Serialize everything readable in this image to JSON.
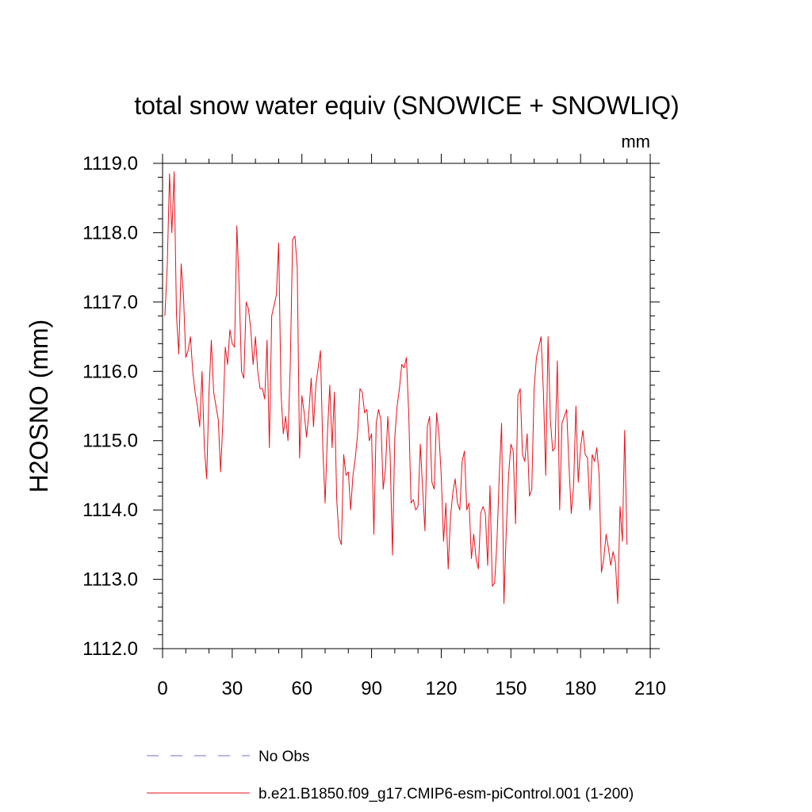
{
  "chart_data": {
    "type": "line",
    "title": "total snow water equiv (SNOWICE + SNOWLIQ)",
    "units": "mm",
    "xlabel": "",
    "ylabel": "H2OSNO  (mm)",
    "xlim": [
      0,
      210
    ],
    "ylim": [
      1112.0,
      1119.0
    ],
    "x_ticks": [
      "0",
      "30",
      "60",
      "90",
      "120",
      "150",
      "180",
      "210"
    ],
    "y_ticks": [
      "1112.0",
      "1113.0",
      "1114.0",
      "1115.0",
      "1116.0",
      "1117.0",
      "1118.0",
      "1119.0"
    ],
    "grid": false,
    "legend_position": "bottom-left",
    "series": [
      {
        "name": "No Obs",
        "style": "dashed",
        "color": "#7070c0",
        "x": [],
        "values": []
      },
      {
        "name": "b.e21.B1850.f09_g17.CMIP6-esm-piControl.001 (1-200)",
        "style": "solid",
        "color": "#e8101a",
        "x": [
          1,
          2,
          3,
          4,
          5,
          6,
          7,
          8,
          9,
          10,
          11,
          12,
          13,
          14,
          15,
          16,
          17,
          18,
          19,
          20,
          21,
          22,
          23,
          24,
          25,
          26,
          27,
          28,
          29,
          30,
          31,
          32,
          33,
          34,
          35,
          36,
          37,
          38,
          39,
          40,
          41,
          42,
          43,
          44,
          45,
          46,
          47,
          48,
          49,
          50,
          51,
          52,
          53,
          54,
          55,
          56,
          57,
          58,
          59,
          60,
          61,
          62,
          63,
          64,
          65,
          66,
          67,
          68,
          69,
          70,
          71,
          72,
          73,
          74,
          75,
          76,
          77,
          78,
          79,
          80,
          81,
          82,
          83,
          84,
          85,
          86,
          87,
          88,
          89,
          90,
          91,
          92,
          93,
          94,
          95,
          96,
          97,
          98,
          99,
          100,
          101,
          102,
          103,
          104,
          105,
          106,
          107,
          108,
          109,
          110,
          111,
          112,
          113,
          114,
          115,
          116,
          117,
          118,
          119,
          120,
          121,
          122,
          123,
          124,
          125,
          126,
          127,
          128,
          129,
          130,
          131,
          132,
          133,
          134,
          135,
          136,
          137,
          138,
          139,
          140,
          141,
          142,
          143,
          144,
          145,
          146,
          147,
          148,
          149,
          150,
          151,
          152,
          153,
          154,
          155,
          156,
          157,
          158,
          159,
          160,
          161,
          162,
          163,
          164,
          165,
          166,
          167,
          168,
          169,
          170,
          171,
          172,
          173,
          174,
          175,
          176,
          177,
          178,
          179,
          180,
          181,
          182,
          183,
          184,
          185,
          186,
          187,
          188,
          189,
          190,
          191,
          192,
          193,
          194,
          195,
          196,
          197,
          198,
          199,
          200
        ],
        "values": [
          1116.8,
          1117.5,
          1118.85,
          1118.0,
          1118.88,
          1116.8,
          1116.25,
          1117.55,
          1117.1,
          1116.2,
          1116.3,
          1116.5,
          1116.0,
          1115.7,
          1115.5,
          1115.2,
          1116.0,
          1114.9,
          1114.45,
          1115.7,
          1116.45,
          1115.7,
          1115.5,
          1115.3,
          1114.55,
          1115.3,
          1116.35,
          1116.1,
          1116.6,
          1116.4,
          1116.35,
          1118.1,
          1117.2,
          1116.0,
          1115.9,
          1117.0,
          1116.9,
          1116.6,
          1116.1,
          1116.5,
          1116.0,
          1115.75,
          1115.75,
          1115.6,
          1116.45,
          1114.9,
          1116.8,
          1116.95,
          1117.1,
          1117.85,
          1115.7,
          1115.1,
          1115.35,
          1115.0,
          1116.1,
          1117.9,
          1117.95,
          1117.5,
          1114.75,
          1115.65,
          1115.4,
          1115.05,
          1115.4,
          1115.9,
          1115.2,
          1115.8,
          1116.05,
          1116.3,
          1114.9,
          1114.1,
          1115.1,
          1115.8,
          1114.9,
          1115.7,
          1114.15,
          1113.6,
          1113.5,
          1114.8,
          1114.5,
          1114.55,
          1114.0,
          1114.5,
          1114.75,
          1115.1,
          1115.75,
          1115.7,
          1115.4,
          1115.45,
          1115.0,
          1115.1,
          1113.65,
          1115.25,
          1115.45,
          1115.3,
          1114.3,
          1114.6,
          1115.35,
          1114.8,
          1113.35,
          1115.05,
          1115.5,
          1115.75,
          1116.1,
          1116.05,
          1116.2,
          1115.4,
          1114.1,
          1114.15,
          1114.0,
          1114.05,
          1114.95,
          1114.3,
          1113.7,
          1115.2,
          1115.35,
          1114.4,
          1114.3,
          1115.4,
          1115.1,
          1114.5,
          1113.55,
          1114.1,
          1113.15,
          1113.9,
          1114.25,
          1114.45,
          1114.1,
          1114.0,
          1114.7,
          1114.85,
          1114.0,
          1114.1,
          1113.3,
          1113.65,
          1113.3,
          1113.15,
          1113.95,
          1114.05,
          1113.95,
          1113.2,
          1114.35,
          1112.9,
          1112.95,
          1113.55,
          1114.5,
          1115.25,
          1112.65,
          1113.7,
          1114.5,
          1114.95,
          1114.85,
          1113.8,
          1115.65,
          1115.75,
          1114.8,
          1114.7,
          1115.1,
          1114.2,
          1114.3,
          1115.75,
          1116.2,
          1116.35,
          1116.5,
          1115.7,
          1114.5,
          1116.5,
          1115.3,
          1114.85,
          1114.9,
          1116.15,
          1114.0,
          1115.25,
          1115.35,
          1115.45,
          1114.65,
          1113.95,
          1114.35,
          1115.5,
          1114.4,
          1114.9,
          1115.15,
          1114.8,
          1114.75,
          1114.0,
          1114.8,
          1114.7,
          1114.9,
          1114.5,
          1113.1,
          1113.3,
          1113.65,
          1113.45,
          1113.2,
          1113.4,
          1113.25,
          1112.65,
          1114.05,
          1113.55,
          1115.15,
          1113.5
        ]
      }
    ]
  }
}
